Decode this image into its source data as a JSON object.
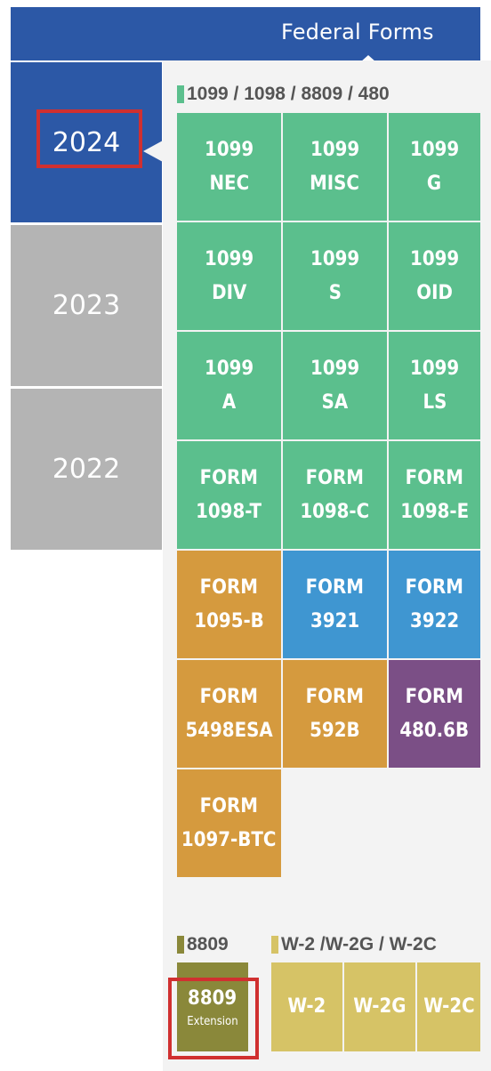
{
  "header": {
    "title": "Federal Forms"
  },
  "years": [
    {
      "label": "2024",
      "active": true
    },
    {
      "label": "2023",
      "active": false
    },
    {
      "label": "2022",
      "active": false
    }
  ],
  "sections": {
    "main": {
      "label": "1099 / 1098 / 8809 / 480"
    },
    "ext": {
      "label": "8809"
    },
    "w2": {
      "label": "W-2 /W-2G / W-2C"
    }
  },
  "tiles": [
    {
      "line1": "1099",
      "line2": "NEC"
    },
    {
      "line1": "1099",
      "line2": "MISC"
    },
    {
      "line1": "1099",
      "line2": "G"
    },
    {
      "line1": "1099",
      "line2": "DIV"
    },
    {
      "line1": "1099",
      "line2": "S"
    },
    {
      "line1": "1099",
      "line2": "OID"
    },
    {
      "line1": "1099",
      "line2": "A"
    },
    {
      "line1": "1099",
      "line2": "SA"
    },
    {
      "line1": "1099",
      "line2": "LS"
    },
    {
      "line1": "FORM",
      "line2": "1098-T"
    },
    {
      "line1": "FORM",
      "line2": "1098-C"
    },
    {
      "line1": "FORM",
      "line2": "1098-E"
    },
    {
      "line1": "FORM",
      "line2": "1095-B"
    },
    {
      "line1": "FORM",
      "line2": "3921"
    },
    {
      "line1": "FORM",
      "line2": "3922"
    },
    {
      "line1": "FORM",
      "line2": "5498ESA"
    },
    {
      "line1": "FORM",
      "line2": "592B"
    },
    {
      "line1": "FORM",
      "line2": "480.6B"
    },
    {
      "line1": "FORM",
      "line2": "1097-BTC"
    }
  ],
  "extension_tile": {
    "line1": "8809",
    "line2": "Extension"
  },
  "w2_tiles": [
    {
      "label": "W-2"
    },
    {
      "label": "W-2G"
    },
    {
      "label": "W-2C"
    }
  ],
  "colors": {
    "header_blue": "#2c58a6",
    "tab_inactive": "#b4b4b4",
    "green": "#5bbf8d",
    "orange": "#d59a3e",
    "blue": "#3f96d1",
    "purple": "#7b4f86",
    "olive": "#8a883a",
    "yellow": "#d6c366",
    "highlight_red": "#d03030"
  }
}
